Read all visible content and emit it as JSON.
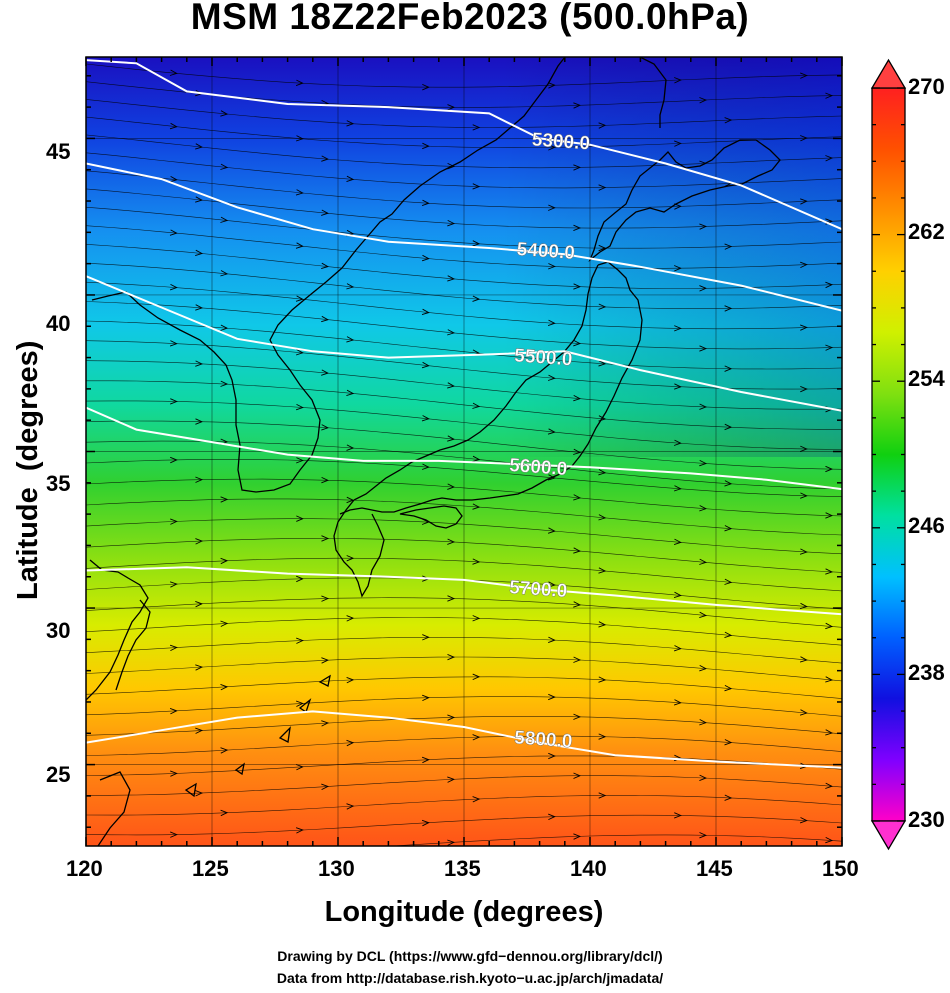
{
  "title": "MSM 18Z22Feb2023 (500.0hPa)",
  "axes": {
    "xlabel": "Longitude (degrees)",
    "ylabel": "Latitude  (degrees)",
    "x_ticks": [
      "120",
      "125",
      "130",
      "135",
      "140",
      "145",
      "150"
    ],
    "y_ticks": [
      "25",
      "30",
      "35",
      "40",
      "45"
    ]
  },
  "colorbar": {
    "ticks": [
      "270",
      "262",
      "254",
      "246",
      "238",
      "230"
    ],
    "min": 230,
    "max": 270,
    "colors": [
      "#ff00c8",
      "#8000ff",
      "#1010e0",
      "#0060ff",
      "#00c0ff",
      "#00e0a0",
      "#10d010",
      "#80e010",
      "#d0f000",
      "#ffd000",
      "#ff9000",
      "#ff5000",
      "#ff2020"
    ]
  },
  "contours": {
    "labels": [
      "5300.0",
      "5400.0",
      "5500.0",
      "5600.0",
      "5700.0",
      "5800.0"
    ],
    "color": "#ffffff"
  },
  "chart_data": {
    "type": "heatmap",
    "title": "MSM 18Z22Feb2023 (500.0hPa)",
    "xlabel": "Longitude (degrees)",
    "ylabel": "Latitude  (degrees)",
    "xlim": [
      120,
      150
    ],
    "ylim": [
      22.4,
      47.6
    ],
    "color_range": [
      230,
      270
    ],
    "contour_levels": [
      5300,
      5400,
      5500,
      5600,
      5700,
      5800
    ],
    "contour_label_positions": [
      {
        "level": "5300.0",
        "lon": 137.7,
        "lat": 45.0
      },
      {
        "level": "5400.0",
        "lon": 137.1,
        "lat": 41.5
      },
      {
        "level": "5500.0",
        "lon": 137.0,
        "lat": 38.1
      },
      {
        "level": "5600.0",
        "lon": 136.8,
        "lat": 34.6
      },
      {
        "level": "5700.0",
        "lon": 136.8,
        "lat": 30.7
      },
      {
        "level": "5800.0",
        "lon": 137.0,
        "lat": 25.9
      }
    ],
    "contour_lines": [
      {
        "level": "5300.0",
        "points": [
          [
            120,
            47.5
          ],
          [
            122,
            47.4
          ],
          [
            124,
            46.5
          ],
          [
            128,
            46.1
          ],
          [
            132,
            46.0
          ],
          [
            136,
            45.8
          ],
          [
            138,
            45.0
          ],
          [
            140,
            44.8
          ],
          [
            143,
            44.2
          ],
          [
            146,
            43.5
          ],
          [
            150,
            42.1
          ]
        ]
      },
      {
        "level": "5400.0",
        "points": [
          [
            120,
            44.2
          ],
          [
            123,
            43.7
          ],
          [
            126,
            42.8
          ],
          [
            129,
            42.1
          ],
          [
            132,
            41.7
          ],
          [
            136,
            41.5
          ],
          [
            139,
            41.3
          ],
          [
            142,
            40.9
          ],
          [
            146,
            40.3
          ],
          [
            150,
            39.5
          ]
        ]
      },
      {
        "level": "5500.0",
        "points": [
          [
            120,
            40.6
          ],
          [
            123,
            39.6
          ],
          [
            126,
            38.6
          ],
          [
            129,
            38.2
          ],
          [
            132,
            38.0
          ],
          [
            136,
            38.1
          ],
          [
            139,
            38.2
          ],
          [
            142,
            37.6
          ],
          [
            146,
            36.9
          ],
          [
            150,
            36.3
          ]
        ]
      },
      {
        "level": "5600.0",
        "points": [
          [
            120,
            36.4
          ],
          [
            122,
            35.7
          ],
          [
            125,
            35.3
          ],
          [
            128,
            34.9
          ],
          [
            131,
            34.7
          ],
          [
            134,
            34.7
          ],
          [
            137,
            34.6
          ],
          [
            140,
            34.5
          ],
          [
            144,
            34.3
          ],
          [
            147,
            34.1
          ],
          [
            150,
            33.8
          ]
        ]
      },
      {
        "level": "5700.0",
        "points": [
          [
            120,
            31.2
          ],
          [
            124,
            31.3
          ],
          [
            128,
            31.1
          ],
          [
            132,
            31.0
          ],
          [
            135,
            30.9
          ],
          [
            138,
            30.6
          ],
          [
            141,
            30.4
          ],
          [
            145,
            30.1
          ],
          [
            150,
            29.8
          ]
        ]
      },
      {
        "level": "5800.0",
        "points": [
          [
            120,
            25.7
          ],
          [
            123,
            26.1
          ],
          [
            126,
            26.5
          ],
          [
            129,
            26.7
          ],
          [
            132,
            26.5
          ],
          [
            135,
            26.2
          ],
          [
            138,
            25.7
          ],
          [
            141,
            25.3
          ],
          [
            145,
            25.1
          ],
          [
            150,
            24.9
          ]
        ]
      }
    ]
  }
}
